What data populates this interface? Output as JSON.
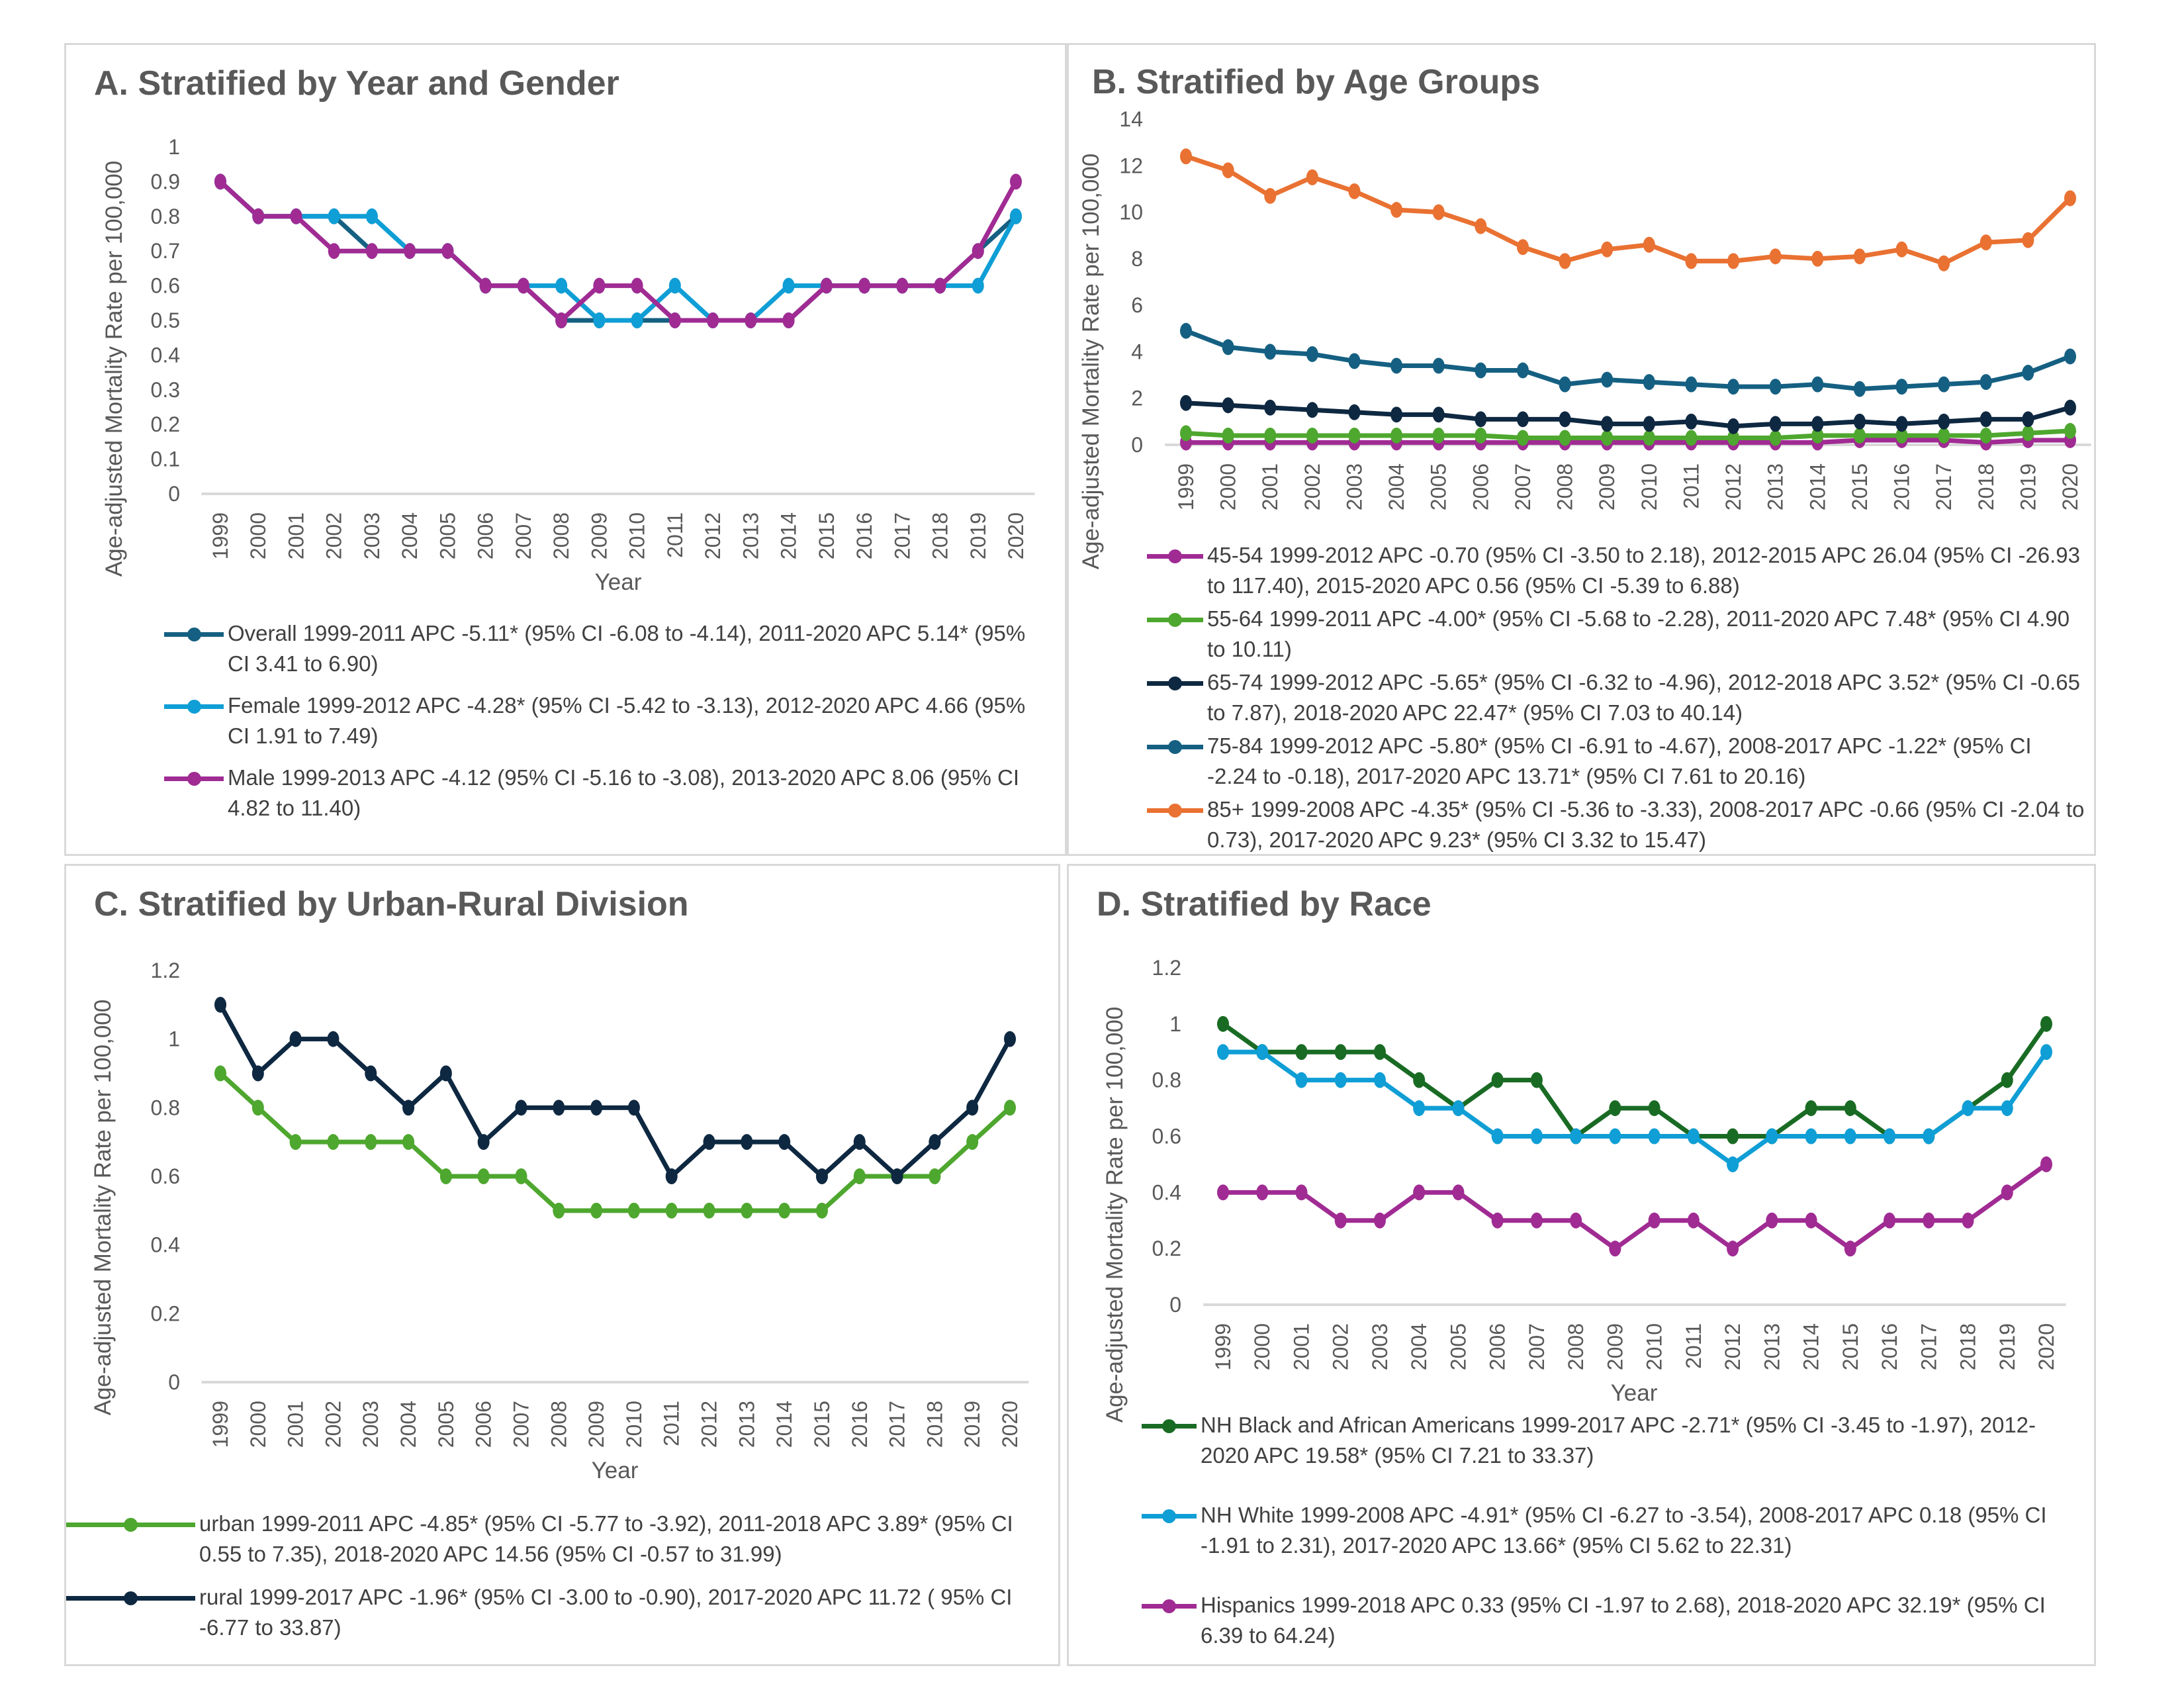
{
  "years": [
    "1999",
    "2000",
    "2001",
    "2002",
    "2003",
    "2004",
    "2005",
    "2006",
    "2007",
    "2008",
    "2009",
    "2010",
    "2011",
    "2012",
    "2013",
    "2014",
    "2015",
    "2016",
    "2017",
    "2018",
    "2019",
    "2020"
  ],
  "chart_data": [
    {
      "id": "A",
      "type": "line",
      "title": "A. Stratified by Year and Gender",
      "xlabel": "Year",
      "ylabel": "Age-adjusted Mortality Rate per 100,000",
      "ylim": [
        0,
        1
      ],
      "yticks": [
        "0",
        "0.1",
        "0.2",
        "0.3",
        "0.4",
        "0.5",
        "0.6",
        "0.7",
        "0.8",
        "0.9",
        "1"
      ],
      "ytick_values": [
        0,
        0.1,
        0.2,
        0.3,
        0.4,
        0.5,
        0.6,
        0.7,
        0.8,
        0.9,
        1
      ],
      "grid": false,
      "legend": "bottom",
      "series": [
        {
          "name": "Overall 1999-2011 APC -5.11* (95% CI -6.08 to -4.14), 2011-2020 APC 5.14* (95% CI 3.41 to 6.90)",
          "color": "#156082",
          "values": [
            0.9,
            0.8,
            0.8,
            0.8,
            0.7,
            0.7,
            0.7,
            0.6,
            0.6,
            0.5,
            0.5,
            0.5,
            0.5,
            0.5,
            0.5,
            0.5,
            0.6,
            0.6,
            0.6,
            0.6,
            0.7,
            0.8
          ]
        },
        {
          "name": "Female 1999-2012 APC -4.28* (95% CI -5.42 to -3.13), 2012-2020 APC 4.66 (95% CI 1.91 to 7.49)",
          "color": "#0f9ed5",
          "values": [
            0.9,
            0.8,
            0.8,
            0.8,
            0.8,
            0.7,
            0.7,
            0.6,
            0.6,
            0.6,
            0.5,
            0.5,
            0.6,
            0.5,
            0.5,
            0.6,
            0.6,
            0.6,
            0.6,
            0.6,
            0.6,
            0.8
          ]
        },
        {
          "name": "Male 1999-2013 APC -4.12 (95% CI -5.16 to -3.08), 2013-2020 APC 8.06 (95% CI 4.82 to 11.40)",
          "color": "#a02b93",
          "values": [
            0.9,
            0.8,
            0.8,
            0.7,
            0.7,
            0.7,
            0.7,
            0.6,
            0.6,
            0.5,
            0.6,
            0.6,
            0.5,
            0.5,
            0.5,
            0.5,
            0.6,
            0.6,
            0.6,
            0.6,
            0.7,
            0.9
          ]
        }
      ]
    },
    {
      "id": "B",
      "type": "line",
      "title": "B. Stratified by Age Groups",
      "xlabel": "",
      "ylabel": "Age-adjusted Mortality Rate per 100,000",
      "ylim": [
        0,
        14
      ],
      "yticks": [
        "0",
        "2",
        "4",
        "6",
        "8",
        "10",
        "12",
        "14"
      ],
      "ytick_values": [
        0,
        2,
        4,
        6,
        8,
        10,
        12,
        14
      ],
      "grid": false,
      "legend": "bottom",
      "series": [
        {
          "name": "45-54 1999-2012 APC -0.70 (95% CI -3.50 to 2.18), 2012-2015 APC 26.04 (95% CI -26.93 to 117.40), 2015-2020 APC 0.56 (95% CI -5.39 to 6.88)",
          "color": "#a02b93",
          "values": [
            0.1,
            0.1,
            0.1,
            0.1,
            0.1,
            0.1,
            0.1,
            0.1,
            0.1,
            0.1,
            0.1,
            0.1,
            0.1,
            0.1,
            0.1,
            0.1,
            0.2,
            0.2,
            0.2,
            0.1,
            0.2,
            0.2
          ]
        },
        {
          "name": "55-64 1999-2011 APC -4.00* (95% CI -5.68 to -2.28), 2011-2020 APC 7.48* (95% CI 4.90 to 10.11)",
          "color": "#4ea72e",
          "values": [
            0.5,
            0.4,
            0.4,
            0.4,
            0.4,
            0.4,
            0.4,
            0.4,
            0.3,
            0.3,
            0.3,
            0.3,
            0.3,
            0.3,
            0.3,
            0.4,
            0.4,
            0.4,
            0.4,
            0.4,
            0.5,
            0.6
          ]
        },
        {
          "name": "65-74 1999-2012 APC -5.65* (95% CI -6.32 to -4.96), 2012-2018 APC 3.52* (95% CI -0.65 to 7.87), 2018-2020 APC 22.47* (95% CI 7.03 to 40.14)",
          "color": "#0e2841",
          "values": [
            1.8,
            1.7,
            1.6,
            1.5,
            1.4,
            1.3,
            1.3,
            1.1,
            1.1,
            1.1,
            0.9,
            0.9,
            1.0,
            0.8,
            0.9,
            0.9,
            1.0,
            0.9,
            1.0,
            1.1,
            1.1,
            1.6
          ]
        },
        {
          "name": "75-84 1999-2012 APC -5.80* (95% CI -6.91 to -4.67), 2008-2017 APC -1.22* (95% CI -2.24 to -0.18), 2017-2020 APC 13.71* (95% CI 7.61 to 20.16)",
          "color": "#156082",
          "values": [
            4.9,
            4.2,
            4.0,
            3.9,
            3.6,
            3.4,
            3.4,
            3.2,
            3.2,
            2.6,
            2.8,
            2.7,
            2.6,
            2.5,
            2.5,
            2.6,
            2.4,
            2.5,
            2.6,
            2.7,
            3.1,
            3.8
          ]
        },
        {
          "name": "85+ 1999-2008 APC -4.35* (95% CI -5.36 to -3.33), 2008-2017 APC -0.66 (95% CI -2.04 to 0.73), 2017-2020 APC 9.23* (95% CI 3.32 to 15.47)",
          "color": "#e97132",
          "values": [
            12.4,
            11.8,
            10.7,
            11.5,
            10.9,
            10.1,
            10.0,
            9.4,
            8.5,
            7.9,
            8.4,
            8.6,
            7.9,
            7.9,
            8.1,
            8.0,
            8.1,
            8.4,
            7.8,
            8.7,
            8.8,
            10.6
          ]
        }
      ]
    },
    {
      "id": "C",
      "type": "line",
      "title": "C. Stratified by Urban-Rural Division",
      "xlabel": "Year",
      "ylabel": "Age-adjusted Mortality Rate per 100,000",
      "ylim": [
        0,
        1.2
      ],
      "yticks": [
        "0",
        "0.2",
        "0.4",
        "0.6",
        "0.8",
        "1",
        "1.2"
      ],
      "ytick_values": [
        0,
        0.2,
        0.4,
        0.6,
        0.8,
        1,
        1.2
      ],
      "grid": false,
      "legend": "bottom",
      "series": [
        {
          "name": "urban 1999-2011 APC -4.85* (95% CI -5.77 to -3.92), 2011-2018 APC 3.89* (95% CI 0.55 to 7.35), 2018-2020 APC 14.56 (95% CI -0.57 to 31.99)",
          "color": "#4ea72e",
          "values": [
            0.9,
            0.8,
            0.7,
            0.7,
            0.7,
            0.7,
            0.6,
            0.6,
            0.6,
            0.5,
            0.5,
            0.5,
            0.5,
            0.5,
            0.5,
            0.5,
            0.5,
            0.6,
            0.6,
            0.6,
            0.7,
            0.8
          ]
        },
        {
          "name": "rural 1999-2017 APC -1.96* (95% CI -3.00 to -0.90), 2017-2020 APC 11.72 ( 95% CI -6.77 to 33.87)",
          "color": "#0e2841",
          "values": [
            1.1,
            0.9,
            1.0,
            1.0,
            0.9,
            0.8,
            0.9,
            0.7,
            0.8,
            0.8,
            0.8,
            0.8,
            0.6,
            0.7,
            0.7,
            0.7,
            0.6,
            0.7,
            0.6,
            0.7,
            0.8,
            1.0
          ]
        }
      ]
    },
    {
      "id": "D",
      "type": "line",
      "title": "D. Stratified by Race",
      "xlabel": "Year",
      "ylabel": "Age-adjusted Mortality Rate per 100,000",
      "ylim": [
        0,
        1.2
      ],
      "yticks": [
        "0",
        "0.2",
        "0.4",
        "0.6",
        "0.8",
        "1",
        "1.2"
      ],
      "ytick_values": [
        0,
        0.2,
        0.4,
        0.6,
        0.8,
        1,
        1.2
      ],
      "grid": false,
      "legend": "bottom",
      "series": [
        {
          "name": "NH Black and African Americans 1999-2017 APC -2.71* (95% CI -3.45 to -1.97), 2012-2020 APC 19.58* (95% CI 7.21 to 33.37)",
          "color": "#196b24",
          "values": [
            1.0,
            0.9,
            0.9,
            0.9,
            0.9,
            0.8,
            0.7,
            0.8,
            0.8,
            0.6,
            0.7,
            0.7,
            0.6,
            0.6,
            0.6,
            0.7,
            0.7,
            0.6,
            0.6,
            0.7,
            0.8,
            1.0
          ]
        },
        {
          "name": "NH White 1999-2008 APC -4.91* (95% CI -6.27 to -3.54), 2008-2017 APC 0.18 (95% CI -1.91 to 2.31), 2017-2020 APC 13.66* (95% CI 5.62 to 22.31)",
          "color": "#0f9ed5",
          "values": [
            0.9,
            0.9,
            0.8,
            0.8,
            0.8,
            0.7,
            0.7,
            0.6,
            0.6,
            0.6,
            0.6,
            0.6,
            0.6,
            0.5,
            0.6,
            0.6,
            0.6,
            0.6,
            0.6,
            0.7,
            0.7,
            0.9
          ]
        },
        {
          "name": "Hispanics 1999-2018 APC 0.33 (95% CI -1.97 to 2.68), 2018-2020 APC 32.19* (95% CI 6.39 to 64.24)",
          "color": "#a02b93",
          "values": [
            0.4,
            0.4,
            0.4,
            0.3,
            0.3,
            0.4,
            0.4,
            0.3,
            0.3,
            0.3,
            0.2,
            0.3,
            0.3,
            0.2,
            0.3,
            0.3,
            0.2,
            0.3,
            0.3,
            0.3,
            0.4,
            0.5
          ]
        }
      ]
    }
  ]
}
